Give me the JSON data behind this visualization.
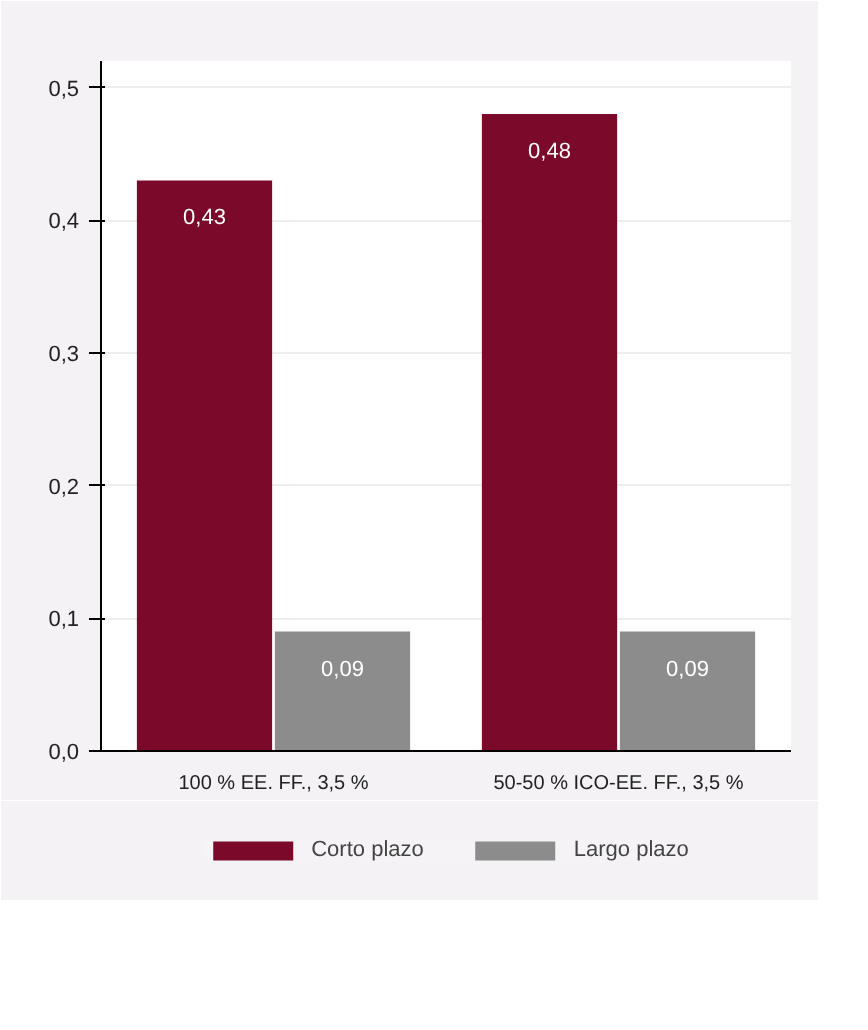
{
  "chart_data": {
    "type": "bar",
    "categories": [
      "100 % EE. FF., 3,5 %",
      "50-50 % ICO-EE. FF., 3,5 %"
    ],
    "series": [
      {
        "name": "Corto plazo",
        "color": "#7b0a2a",
        "values": [
          0.43,
          0.48
        ],
        "value_labels": [
          "0,43",
          "0,48"
        ]
      },
      {
        "name": "Largo plazo",
        "color": "#8c8c8c",
        "values": [
          0.09,
          0.09
        ],
        "value_labels": [
          "0,09",
          "0,09"
        ]
      }
    ],
    "ylim": [
      0,
      0.52
    ],
    "yticks": [
      {
        "value": 0,
        "label": "0,0"
      },
      {
        "value": 0.1,
        "label": "0,1"
      },
      {
        "value": 0.2,
        "label": "0,2"
      },
      {
        "value": 0.3,
        "label": "0,3"
      },
      {
        "value": 0.4,
        "label": "0,4"
      },
      {
        "value": 0.5,
        "label": "0,5"
      }
    ],
    "grid": "y",
    "legend": "bottom"
  }
}
